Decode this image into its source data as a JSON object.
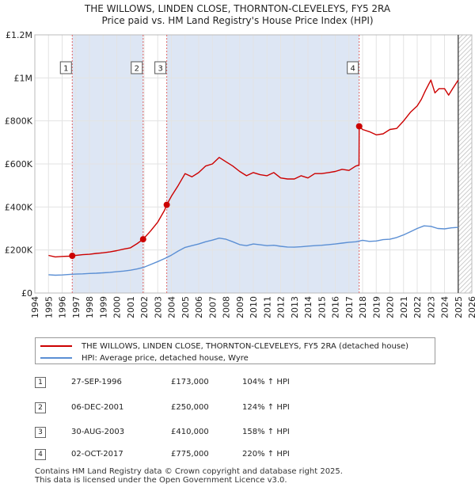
{
  "title_line1": "THE WILLOWS, LINDEN CLOSE, THORNTON-CLEVELEYS, FY5 2RA",
  "title_line2": "Price paid vs. HM Land Registry's House Price Index (HPI)",
  "legend": {
    "property_label": "THE WILLOWS, LINDEN CLOSE, THORNTON-CLEVELEYS, FY5 2RA (detached house)",
    "hpi_label": "HPI: Average price, detached house, Wyre"
  },
  "colors": {
    "property": "#cc0000",
    "hpi": "#5b8fd4",
    "shade": "#dde6f4",
    "future": "#888888"
  },
  "sales": [
    {
      "num": "1",
      "date": "27-SEP-1996",
      "price": "£173,000",
      "hpi_change": "104% ↑ HPI"
    },
    {
      "num": "2",
      "date": "06-DEC-2001",
      "price": "£250,000",
      "hpi_change": "124% ↑ HPI"
    },
    {
      "num": "3",
      "date": "30-AUG-2003",
      "price": "£410,000",
      "hpi_change": "158% ↑ HPI"
    },
    {
      "num": "4",
      "date": "02-OCT-2017",
      "price": "£775,000",
      "hpi_change": "220% ↑ HPI"
    }
  ],
  "footer": {
    "line1": "Contains HM Land Registry data © Crown copyright and database right 2025.",
    "line2": "This data is licensed under the Open Government Licence v3.0."
  },
  "chart_data": {
    "type": "line",
    "xlim": [
      1994,
      2026
    ],
    "ylim": [
      0,
      1200000
    ],
    "x_ticks": [
      1994,
      1995,
      1996,
      1997,
      1998,
      1999,
      2000,
      2001,
      2002,
      2003,
      2004,
      2005,
      2006,
      2007,
      2008,
      2009,
      2010,
      2011,
      2012,
      2013,
      2014,
      2015,
      2016,
      2017,
      2018,
      2019,
      2020,
      2021,
      2022,
      2023,
      2024,
      2025,
      2026
    ],
    "y_ticks": [
      {
        "value": 0,
        "label": "£0"
      },
      {
        "value": 200000,
        "label": "£200K"
      },
      {
        "value": 400000,
        "label": "£400K"
      },
      {
        "value": 600000,
        "label": "£600K"
      },
      {
        "value": 800000,
        "label": "£800K"
      },
      {
        "value": 1000000,
        "label": "£1M"
      },
      {
        "value": 1200000,
        "label": "£1.2M"
      }
    ],
    "grid": true,
    "future_from": 2025.0,
    "sale_markers": [
      {
        "label": "1",
        "x": 1996.74,
        "y": 173000
      },
      {
        "label": "2",
        "x": 2001.93,
        "y": 250000
      },
      {
        "label": "3",
        "x": 2003.66,
        "y": 410000
      },
      {
        "label": "4",
        "x": 2017.75,
        "y": 775000
      }
    ],
    "series": [
      {
        "name": "THE WILLOWS, LINDEN CLOSE, THORNTON-CLEVELEYS, FY5 2RA (detached house)",
        "x": [
          1995.0,
          1995.5,
          1996.0,
          1996.5,
          1996.74,
          1997.5,
          1998.0,
          1998.5,
          1999.0,
          1999.5,
          2000.0,
          2000.5,
          2001.0,
          2001.5,
          2001.93,
          2002.5,
          2003.0,
          2003.5,
          2003.66,
          2004.0,
          2004.5,
          2005.0,
          2005.5,
          2006.0,
          2006.5,
          2007.0,
          2007.5,
          2008.0,
          2008.5,
          2009.0,
          2009.5,
          2010.0,
          2010.5,
          2011.0,
          2011.5,
          2012.0,
          2012.5,
          2013.0,
          2013.5,
          2014.0,
          2014.5,
          2015.0,
          2015.5,
          2016.0,
          2016.5,
          2017.0,
          2017.5,
          2017.74,
          2017.75,
          2018.0,
          2018.5,
          2019.0,
          2019.5,
          2020.0,
          2020.5,
          2021.0,
          2021.5,
          2022.0,
          2022.3,
          2022.6,
          2023.0,
          2023.3,
          2023.6,
          2024.0,
          2024.3,
          2024.6,
          2025.0
        ],
        "values": [
          175000,
          168000,
          170000,
          171000,
          173000,
          178000,
          180000,
          184000,
          187000,
          191000,
          197000,
          204000,
          210000,
          230000,
          250000,
          290000,
          330000,
          385000,
          410000,
          450000,
          500000,
          555000,
          540000,
          560000,
          590000,
          600000,
          630000,
          610000,
          590000,
          565000,
          545000,
          560000,
          550000,
          545000,
          560000,
          535000,
          530000,
          530000,
          545000,
          535000,
          555000,
          555000,
          560000,
          565000,
          575000,
          570000,
          590000,
          595000,
          775000,
          760000,
          750000,
          735000,
          740000,
          760000,
          765000,
          800000,
          840000,
          870000,
          900000,
          940000,
          990000,
          930000,
          950000,
          950000,
          920000,
          950000,
          990000
        ]
      },
      {
        "name": "HPI: Average price, detached house, Wyre",
        "x": [
          1995.0,
          1995.5,
          1996.0,
          1996.5,
          1997.0,
          1997.5,
          1998.0,
          1998.5,
          1999.0,
          1999.5,
          2000.0,
          2000.5,
          2001.0,
          2001.5,
          2002.0,
          2002.5,
          2003.0,
          2003.5,
          2004.0,
          2004.5,
          2005.0,
          2005.5,
          2006.0,
          2006.5,
          2007.0,
          2007.5,
          2008.0,
          2008.5,
          2009.0,
          2009.5,
          2010.0,
          2010.5,
          2011.0,
          2011.5,
          2012.0,
          2012.5,
          2013.0,
          2013.5,
          2014.0,
          2014.5,
          2015.0,
          2015.5,
          2016.0,
          2016.5,
          2017.0,
          2017.5,
          2018.0,
          2018.5,
          2019.0,
          2019.5,
          2020.0,
          2020.5,
          2021.0,
          2021.5,
          2022.0,
          2022.5,
          2023.0,
          2023.5,
          2024.0,
          2024.5,
          2025.0
        ],
        "values": [
          85000,
          83000,
          84000,
          86000,
          88000,
          89000,
          91000,
          92000,
          94000,
          96000,
          99000,
          102000,
          106000,
          112000,
          120000,
          133000,
          146000,
          160000,
          176000,
          195000,
          212000,
          220000,
          228000,
          238000,
          246000,
          255000,
          250000,
          238000,
          225000,
          220000,
          228000,
          224000,
          220000,
          222000,
          217000,
          214000,
          213000,
          215000,
          218000,
          220000,
          222000,
          225000,
          228000,
          232000,
          236000,
          238000,
          245000,
          240000,
          242000,
          248000,
          250000,
          258000,
          270000,
          285000,
          300000,
          312000,
          310000,
          300000,
          298000,
          303000,
          305000
        ]
      }
    ]
  }
}
